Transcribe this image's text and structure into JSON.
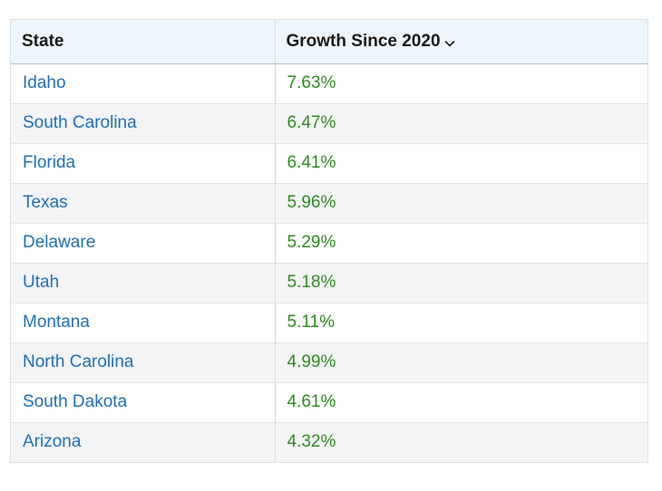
{
  "table": {
    "headers": {
      "state": "State",
      "growth": "Growth Since 2020"
    },
    "sort_icon": "chevron-down-icon",
    "colors": {
      "link": "#1f6fb8",
      "positive": "#2e8b1f",
      "header_bg": "#eef6fd"
    },
    "rows": [
      {
        "state": "Idaho",
        "growth": "7.63%"
      },
      {
        "state": "South Carolina",
        "growth": "6.47%"
      },
      {
        "state": "Florida",
        "growth": "6.41%"
      },
      {
        "state": "Texas",
        "growth": "5.96%"
      },
      {
        "state": "Delaware",
        "growth": "5.29%"
      },
      {
        "state": "Utah",
        "growth": "5.18%"
      },
      {
        "state": "Montana",
        "growth": "5.11%"
      },
      {
        "state": "North Carolina",
        "growth": "4.99%"
      },
      {
        "state": "South Dakota",
        "growth": "4.61%"
      },
      {
        "state": "Arizona",
        "growth": "4.32%"
      }
    ]
  }
}
